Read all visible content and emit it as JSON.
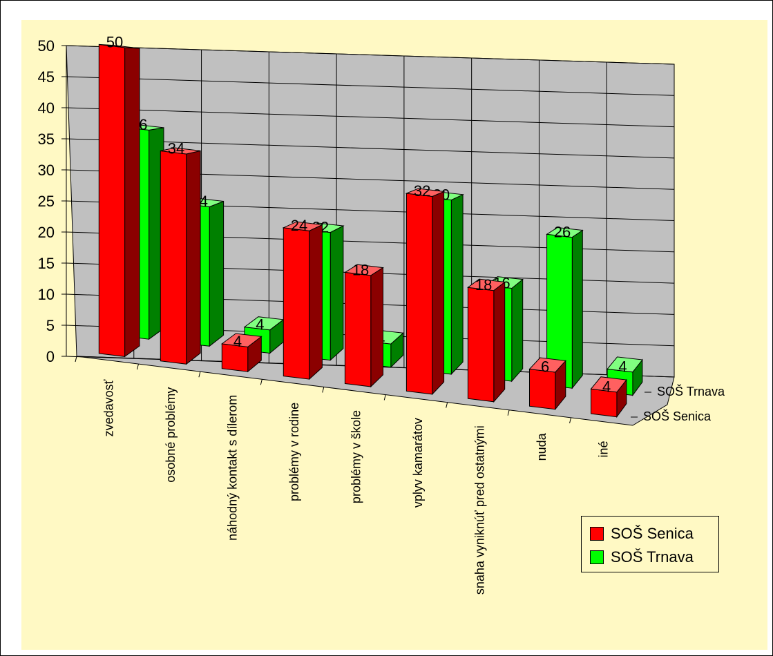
{
  "chart_data": {
    "type": "bar",
    "categories": [
      "zvedavosť",
      "osobné problémy",
      "náhodný kontakt s dílerom",
      "problémy v rodine",
      "problémy v škole",
      "vplyv kamarátov",
      "snaha vyniknúť pred ostatnými",
      "nuda",
      "iné"
    ],
    "series": [
      {
        "name": "SOŠ Senica",
        "values": [
          50,
          34,
          4,
          24,
          18,
          32,
          18,
          6,
          4
        ],
        "color": "#ff0000"
      },
      {
        "name": "SOŠ Trnava",
        "values": [
          36,
          24,
          4,
          22,
          4,
          30,
          16,
          26,
          4
        ],
        "color": "#00ff00"
      }
    ],
    "ylim": [
      0,
      50
    ],
    "yticks": [
      "0",
      "5",
      "10",
      "15",
      "20",
      "25",
      "30",
      "35",
      "40",
      "45",
      "50"
    ],
    "depth_labels": [
      "SOŠ Senica",
      "SOŠ Trnava"
    ],
    "legend": {
      "position": "bottom-right"
    },
    "grid": true,
    "title": "",
    "xlabel": "",
    "ylabel": ""
  },
  "colors": {
    "chart_area": "#fff9c4",
    "back_wall": "#c0c0c0",
    "floor": "#c0c0c0"
  }
}
